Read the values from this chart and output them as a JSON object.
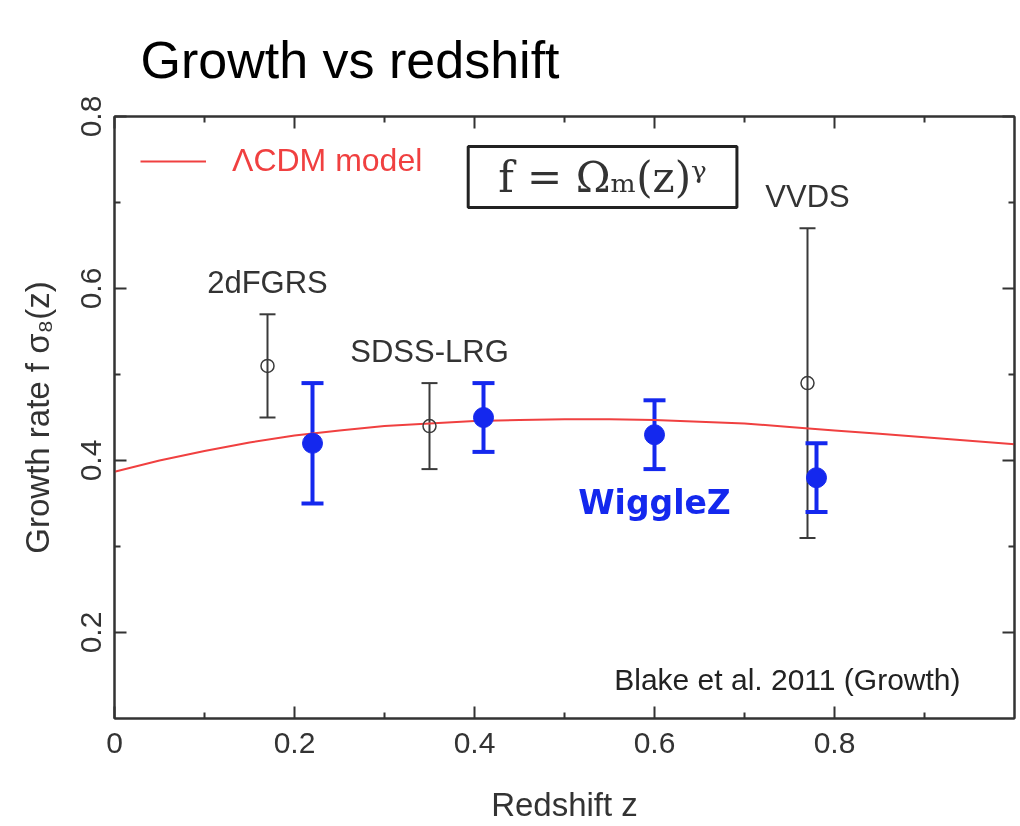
{
  "chart_data": {
    "type": "scatter",
    "title": "Growth vs redshift",
    "xlabel": "Redshift z",
    "ylabel": "Growth rate f σ₈(z)",
    "xlim": [
      0,
      1
    ],
    "ylim": [
      0.1,
      0.8
    ],
    "xticks": [
      0,
      {
        "value": 0.1,
        "label": null
      },
      0.2,
      {
        "value": 0.3,
        "label": null
      },
      0.4,
      {
        "value": 0.5,
        "label": null
      },
      0.6,
      {
        "value": 0.7,
        "label": null
      },
      0.8,
      {
        "value": 0.9,
        "label": null
      }
    ],
    "yticks": [
      0.2,
      {
        "value": 0.3,
        "label": null
      },
      0.4,
      {
        "value": 0.5,
        "label": null
      },
      0.6,
      {
        "value": 0.7,
        "label": null
      },
      0.8
    ],
    "grid": false,
    "legend": "top left",
    "series": [
      {
        "name": "ΛCDM model",
        "type": "line",
        "color": "#f04040",
        "x": [
          0,
          0.05,
          0.1,
          0.15,
          0.2,
          0.25,
          0.3,
          0.35,
          0.4,
          0.45,
          0.5,
          0.55,
          0.6,
          0.65,
          0.7,
          0.75,
          0.8,
          0.85,
          0.9,
          0.95,
          1.0
        ],
        "values": [
          0.387,
          0.4,
          0.411,
          0.421,
          0.429,
          0.435,
          0.44,
          0.443,
          0.446,
          0.447,
          0.448,
          0.448,
          0.447,
          0.445,
          0.443,
          0.439,
          0.435,
          0.431,
          0.427,
          0.423,
          0.419
        ]
      },
      {
        "color": "#3a3a3a",
        "marker": "circle",
        "x": [
          0.17,
          0.35,
          0.77
        ],
        "values": [
          0.51,
          0.44,
          0.49
        ],
        "errors": [
          0.06,
          0.05,
          0.18
        ]
      },
      {
        "name": "WiggleZ",
        "color": "#1428ee",
        "marker": "circle",
        "x": [
          0.22,
          0.41,
          0.6,
          0.78
        ],
        "values": [
          0.42,
          0.45,
          0.43,
          0.38
        ],
        "errors": [
          0.07,
          0.04,
          0.04,
          0.04
        ]
      }
    ],
    "annotations": [
      "f = Ωₘ(z)ᵞ",
      "Blake et al. 2011 (Growth)",
      {
        "text": "2dFGRS",
        "x": 0.17,
        "y": 0.57
      },
      {
        "text": "SDSS-LRG",
        "x": 0.35,
        "y": 0.49
      },
      {
        "text": "VVDS",
        "x": 0.77,
        "y": 0.67
      }
    ]
  }
}
